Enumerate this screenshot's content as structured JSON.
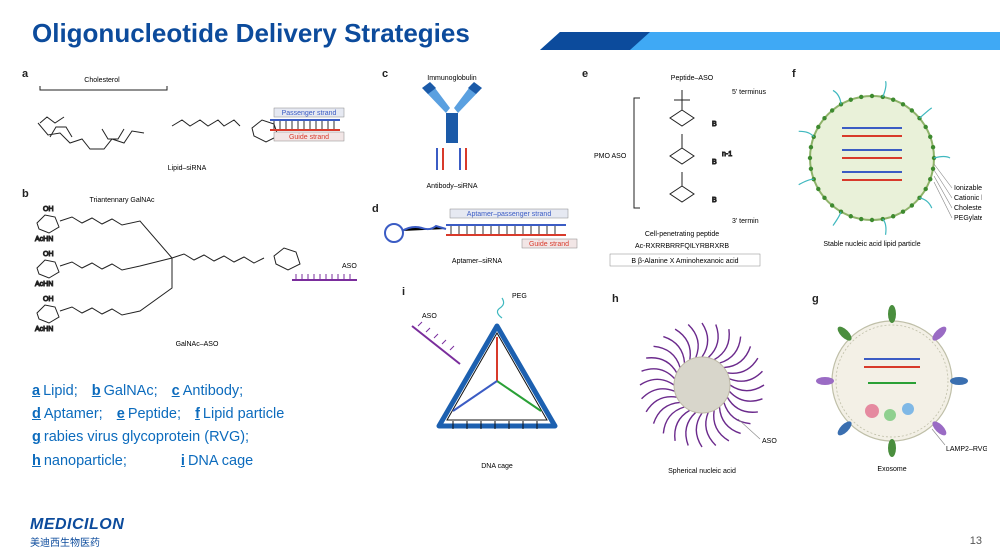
{
  "title": "Oligonucleotide Delivery Strategies",
  "page_number": "13",
  "brand": {
    "en": "MEDICILON",
    "cn": "美迪西生物医药"
  },
  "colors": {
    "title": "#0c4b9c",
    "accent": "#3fa9f5",
    "legend_text": "#0c6bbd",
    "blue": "#3b5cc4",
    "red": "#d83a2b",
    "purple": "#7a2d9c",
    "green": "#2aa036",
    "lipid_fill": "#e9f1d9",
    "lipid_stroke": "#8fb36a",
    "peg": "#3fb8bf",
    "sphere_core": "#d8d6cb",
    "sphere_arm": "#6b2a8c"
  },
  "panels": {
    "a": {
      "tag": "a",
      "header": "Cholesterol",
      "caption": "Lipid–siRNA",
      "strand1": "Passenger strand",
      "strand2": "Guide strand"
    },
    "b": {
      "tag": "b",
      "header": "Triantennary GalNAc",
      "gal": "AcHN",
      "oh": "OH",
      "caption": "GalNAc–ASO",
      "aso": "ASO"
    },
    "c": {
      "tag": "c",
      "header": "Immunoglobulin",
      "caption": "Antibody–siRNA"
    },
    "d": {
      "tag": "d",
      "strand1": "Aptamer–passenger strand",
      "strand2": "Guide strand",
      "caption": "Aptamer–siRNA"
    },
    "e": {
      "tag": "e",
      "header": "Peptide–ASO",
      "five": "5' terminus",
      "three": "3' termin",
      "pmo": "PMO ASO",
      "cpp": "Cell-penetrating peptide",
      "seq": "Ac-RXRRBRRFQILYRBRXRB",
      "key": "B β-Alanine  X Aminohexanoic acid"
    },
    "f": {
      "tag": "f",
      "caption": "Stable nucleic acid lipid particle",
      "l1": "Ionizable lipid",
      "l2": "Cationic lipid",
      "l3": "Cholesterol",
      "l4": "PEGylated lipid"
    },
    "g": {
      "tag": "g",
      "caption": "Exosome",
      "lamp": "LAMP2–RVG"
    },
    "h": {
      "tag": "h",
      "caption": "Spherical nucleic acid",
      "aso": "ASO"
    },
    "i": {
      "tag": "i",
      "caption": "DNA cage",
      "peg": "PEG",
      "aso": "ASO"
    }
  },
  "legend": [
    {
      "k": "a",
      "t": "Lipid;"
    },
    {
      "k": "b",
      "t": "GalNAc;"
    },
    {
      "k": "c",
      "t": "Antibody;"
    },
    {
      "k": "d",
      "t": "Aptamer;"
    },
    {
      "k": "e",
      "t": "Peptide;"
    },
    {
      "k": "f",
      "t": "Lipid particle"
    },
    {
      "k": "g",
      "t": "rabies virus glycoprotein (RVG);"
    },
    {
      "k": "h",
      "t": "nanoparticle;"
    },
    {
      "k": "i",
      "t": "DNA cage"
    }
  ]
}
